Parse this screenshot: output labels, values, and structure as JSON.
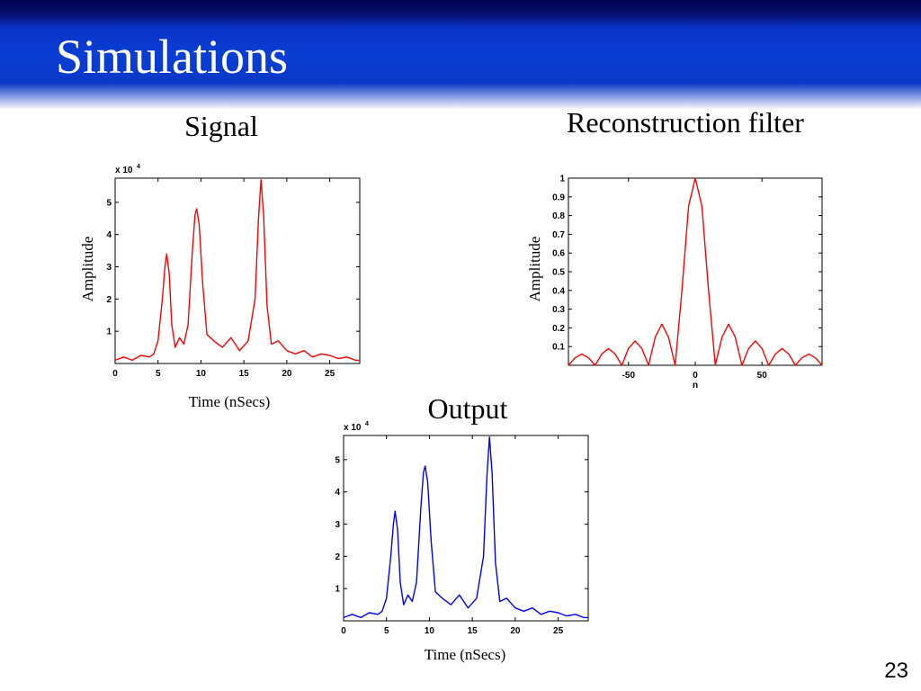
{
  "slide": {
    "title": "Simulations",
    "page_number": "23"
  },
  "chart_data": [
    {
      "type": "line",
      "title": "Signal",
      "xlabel": "Time (nSecs)",
      "ylabel": "Amplitude",
      "y_multiplier": "x 10",
      "y_exponent": "4",
      "xlim": [
        0,
        28.5
      ],
      "ylim": [
        0,
        5.75
      ],
      "xticks": [
        0,
        5,
        10,
        15,
        20,
        25
      ],
      "yticks": [
        1,
        2,
        3,
        4,
        5
      ],
      "color": "#ff0000",
      "series": [
        {
          "x": [
            0,
            1,
            2,
            3,
            4,
            4.5,
            5,
            5.5,
            5.8,
            6,
            6.3,
            6.6,
            7,
            7.5,
            8,
            8.5,
            9,
            9.3,
            9.5,
            9.8,
            10.2,
            10.7,
            11.5,
            12.5,
            13.5,
            14.5,
            15.5,
            16.3,
            16.7,
            17,
            17.3,
            17.7,
            18.2,
            19,
            20,
            21,
            22,
            23,
            24,
            25,
            26,
            27,
            28,
            28.5
          ],
          "y": [
            0.1,
            0.2,
            0.1,
            0.25,
            0.2,
            0.3,
            0.7,
            2.0,
            3.0,
            3.4,
            2.8,
            1.2,
            0.5,
            0.8,
            0.6,
            1.2,
            3.5,
            4.6,
            4.8,
            4.3,
            2.5,
            0.9,
            0.7,
            0.5,
            0.8,
            0.4,
            0.7,
            2.0,
            4.5,
            5.7,
            4.6,
            1.8,
            0.6,
            0.7,
            0.4,
            0.3,
            0.4,
            0.2,
            0.3,
            0.25,
            0.15,
            0.2,
            0.1,
            0.1
          ]
        }
      ]
    },
    {
      "type": "line",
      "title": "Reconstruction filter",
      "xlabel": "n",
      "ylabel": "Amplitude",
      "xlim": [
        -95,
        95
      ],
      "ylim": [
        0,
        1
      ],
      "xticks": [
        -50,
        0,
        50
      ],
      "yticks": [
        0.1,
        0.2,
        0.3,
        0.4,
        0.5,
        0.6,
        0.7,
        0.8,
        0.9,
        1
      ],
      "color": "#ff0000",
      "series": [
        {
          "x": [
            -95,
            -90,
            -85,
            -80,
            -75,
            -70,
            -65,
            -60,
            -55,
            -50,
            -45,
            -40,
            -35,
            -30,
            -25,
            -20,
            -15,
            -10,
            -5,
            0,
            5,
            10,
            15,
            20,
            25,
            30,
            35,
            40,
            45,
            50,
            55,
            60,
            65,
            70,
            75,
            80,
            85,
            90,
            95
          ],
          "y": [
            0.0,
            0.04,
            0.06,
            0.04,
            0.0,
            0.06,
            0.09,
            0.06,
            0.0,
            0.09,
            0.13,
            0.09,
            0.0,
            0.15,
            0.22,
            0.15,
            0.0,
            0.4,
            0.85,
            1.0,
            0.85,
            0.4,
            0.0,
            0.15,
            0.22,
            0.15,
            0.0,
            0.09,
            0.13,
            0.09,
            0.0,
            0.06,
            0.09,
            0.06,
            0.0,
            0.04,
            0.06,
            0.04,
            0.0
          ]
        }
      ]
    },
    {
      "type": "line",
      "title": "Output",
      "xlabel": "Time (nSecs)",
      "ylabel": "",
      "y_multiplier": "x 10",
      "y_exponent": "4",
      "xlim": [
        0,
        28.5
      ],
      "ylim": [
        0,
        5.75
      ],
      "xticks": [
        0,
        5,
        10,
        15,
        20,
        25
      ],
      "yticks": [
        1,
        2,
        3,
        4,
        5
      ],
      "color": "#0000ff",
      "series": [
        {
          "x": [
            0,
            1,
            2,
            3,
            4,
            4.5,
            5,
            5.5,
            5.8,
            6,
            6.3,
            6.6,
            7,
            7.5,
            8,
            8.5,
            9,
            9.3,
            9.5,
            9.8,
            10.2,
            10.7,
            11.5,
            12.5,
            13.5,
            14.5,
            15.5,
            16.3,
            16.7,
            17,
            17.3,
            17.7,
            18.2,
            19,
            20,
            21,
            22,
            23,
            24,
            25,
            26,
            27,
            28,
            28.5
          ],
          "y": [
            0.1,
            0.2,
            0.1,
            0.25,
            0.2,
            0.3,
            0.7,
            2.0,
            3.0,
            3.4,
            2.8,
            1.2,
            0.5,
            0.8,
            0.6,
            1.2,
            3.5,
            4.6,
            4.8,
            4.3,
            2.5,
            0.9,
            0.7,
            0.5,
            0.8,
            0.4,
            0.7,
            2.0,
            4.5,
            5.7,
            4.6,
            1.8,
            0.6,
            0.7,
            0.4,
            0.3,
            0.4,
            0.2,
            0.3,
            0.25,
            0.15,
            0.2,
            0.1,
            0.1
          ]
        }
      ]
    }
  ]
}
